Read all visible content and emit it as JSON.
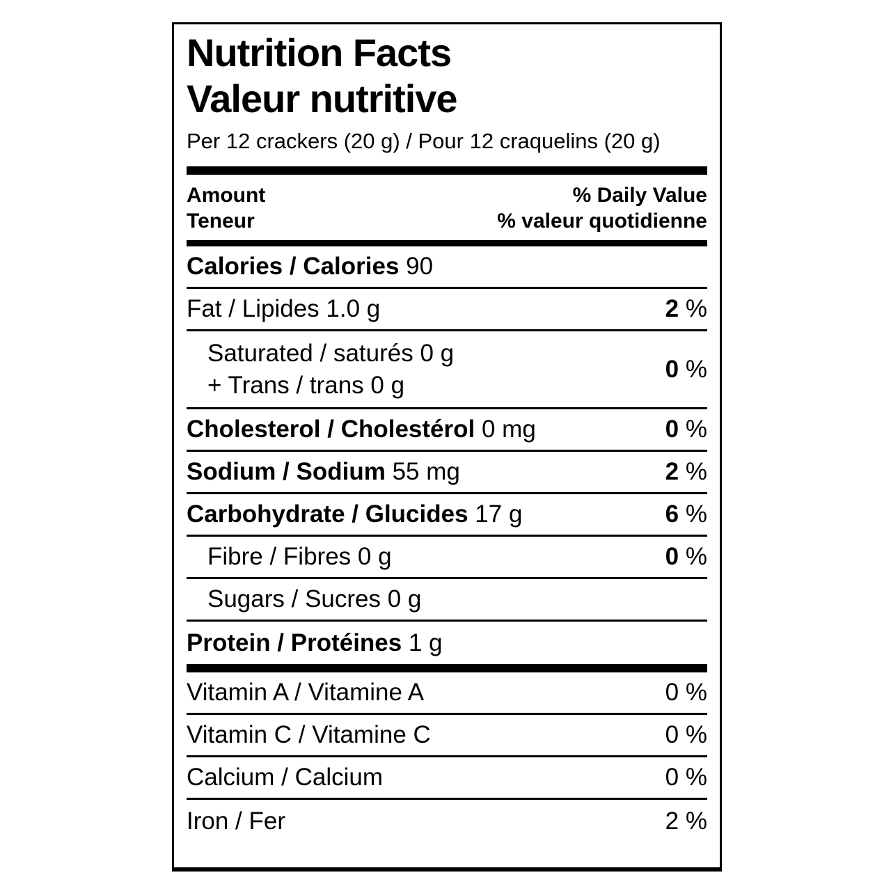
{
  "label": {
    "title_en": "Nutrition Facts",
    "title_fr": "Valeur nutritive",
    "serving": "Per 12 crackers (20 g) / Pour 12 craquelins (20 g)",
    "header": {
      "amount_en": "Amount",
      "amount_fr": "Teneur",
      "daily_value_en": "% Daily Value",
      "daily_value_fr": "% valeur quotidienne"
    },
    "pct_sign": "%",
    "rows": {
      "calories": {
        "label": "Calories / Calories",
        "value": "90"
      },
      "fat": {
        "label": "Fat / Lipides",
        "value": "1.0 g",
        "pct": "2"
      },
      "saturated": {
        "line1": "Saturated / saturés 0 g",
        "line2": "+ Trans / trans 0 g",
        "pct": "0"
      },
      "cholesterol": {
        "label": "Cholesterol / Cholestérol",
        "value": "0 mg",
        "pct": "0"
      },
      "sodium": {
        "label": "Sodium / Sodium",
        "value": "55 mg",
        "pct": "2"
      },
      "carbohydrate": {
        "label": "Carbohydrate / Glucides",
        "value": "17 g",
        "pct": "6"
      },
      "fibre": {
        "label": "Fibre / Fibres",
        "value": "0 g",
        "pct": "0"
      },
      "sugars": {
        "label": "Sugars / Sucres",
        "value": "0 g"
      },
      "protein": {
        "label": "Protein / Protéines",
        "value": "1 g"
      },
      "vitamin_a": {
        "label": "Vitamin A / Vitamine A",
        "pct": "0"
      },
      "vitamin_c": {
        "label": "Vitamin C / Vitamine C",
        "pct": "0"
      },
      "calcium": {
        "label": "Calcium / Calcium",
        "pct": "0"
      },
      "iron": {
        "label": "Iron / Fer",
        "pct": "2"
      }
    }
  }
}
